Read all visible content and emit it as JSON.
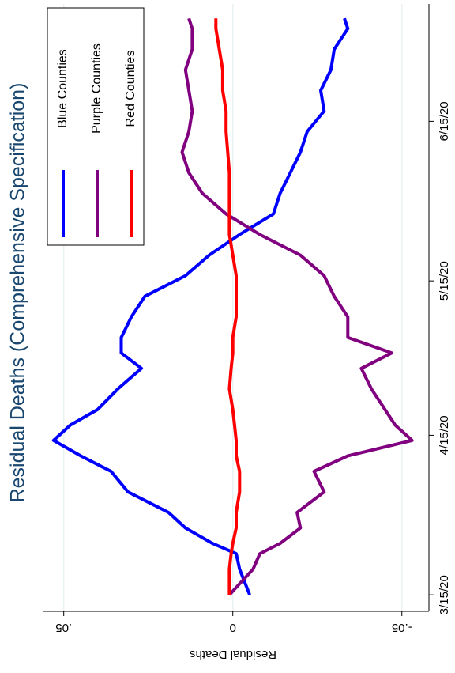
{
  "chart_data": {
    "type": "line",
    "title": "Residual Deaths (Comprehensive Specification)",
    "y_label": "Residual Deaths",
    "x": [
      0,
      5,
      8,
      10,
      13,
      16,
      20,
      24,
      27,
      30,
      33,
      36,
      40,
      44,
      47,
      50,
      54,
      58,
      62,
      66,
      70,
      74,
      78,
      82,
      86,
      90,
      94,
      98,
      102,
      106,
      110,
      112
    ],
    "series": [
      {
        "name": "Blue Counties",
        "color": "#0000ff",
        "values": [
          -0.005,
          -0.002,
          -0.001,
          0.006,
          0.014,
          0.019,
          0.031,
          0.036,
          0.045,
          0.053,
          0.048,
          0.04,
          0.034,
          0.027,
          0.033,
          0.033,
          0.03,
          0.026,
          0.014,
          0.007,
          -0.002,
          -0.012,
          -0.014,
          -0.017,
          -0.02,
          -0.022,
          -0.027,
          -0.026,
          -0.029,
          -0.03,
          -0.034,
          -0.033
        ]
      },
      {
        "name": "Purple Counties",
        "color": "#800080",
        "values": [
          0.001,
          -0.006,
          -0.008,
          -0.014,
          -0.02,
          -0.019,
          -0.027,
          -0.024,
          -0.034,
          -0.053,
          -0.048,
          -0.045,
          -0.041,
          -0.038,
          -0.047,
          -0.034,
          -0.034,
          -0.03,
          -0.027,
          -0.02,
          -0.008,
          0.002,
          0.009,
          0.013,
          0.015,
          0.013,
          0.012,
          0.013,
          0.014,
          0.012,
          0.012,
          0.013
        ]
      },
      {
        "name": "Red Counties",
        "color": "#ff0000",
        "values": [
          0.001,
          0.001,
          0.0005,
          0,
          -0.001,
          -0.001,
          -0.002,
          -0.002,
          -0.001,
          -0.001,
          -0.0005,
          0,
          0.001,
          0.0005,
          0,
          0,
          -0.001,
          -0.001,
          -0.001,
          0,
          0.001,
          0.001,
          0.001,
          0.001,
          0.0015,
          0.002,
          0.002,
          0.003,
          0.003,
          0.004,
          0.005,
          0.005
        ]
      }
    ],
    "xlim": [
      -3.2,
      114.8
    ],
    "xticks": [
      {
        "value": 0,
        "label": "3/15/20"
      },
      {
        "value": 31,
        "label": "4/15/20"
      },
      {
        "value": 61,
        "label": "5/15/20"
      },
      {
        "value": 92,
        "label": "6/15/20"
      }
    ],
    "ylim": [
      -0.058,
      0.056
    ],
    "yticks": [
      {
        "value": 0.05,
        "label": ".05"
      },
      0,
      {
        "value": -0.05,
        "label": "-.05"
      }
    ],
    "grid": true
  }
}
